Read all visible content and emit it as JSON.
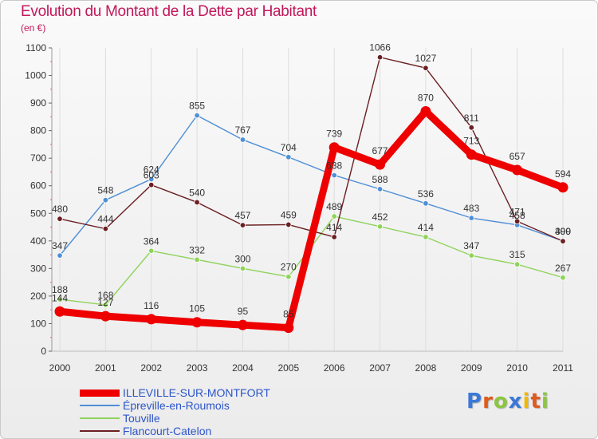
{
  "chart_data": {
    "type": "line",
    "title": "Evolution du Montant de la Dette par Habitant",
    "unit_label": "(en €)",
    "xlabel": "",
    "ylabel": "",
    "ylim": [
      0,
      1100
    ],
    "y_ticks": [
      0,
      100,
      200,
      300,
      400,
      500,
      600,
      700,
      800,
      900,
      1000,
      1100
    ],
    "categories": [
      "2000",
      "2001",
      "2002",
      "2003",
      "2004",
      "2005",
      "2006",
      "2007",
      "2008",
      "2009",
      "2010",
      "2011"
    ],
    "grid": "vertical",
    "legend_position": "bottom-left",
    "series": [
      {
        "name": "ILLEVILLE-SUR-MONTFORT",
        "color": "#ee0000",
        "values": [
          144,
          127,
          116,
          105,
          95,
          85,
          739,
          677,
          870,
          713,
          657,
          594
        ]
      },
      {
        "name": "Épreville-en-Roumois",
        "color": "#4f8fd6",
        "values": [
          347,
          548,
          624,
          855,
          767,
          704,
          638,
          588,
          536,
          483,
          458,
          400
        ]
      },
      {
        "name": "Touville",
        "color": "#90d35b",
        "values": [
          188,
          168,
          364,
          332,
          300,
          270,
          489,
          452,
          414,
          347,
          315,
          267
        ]
      },
      {
        "name": "Flancourt-Catelon",
        "color": "#6b1f22",
        "values": [
          480,
          444,
          603,
          540,
          457,
          459,
          414,
          1066,
          1027,
          811,
          471,
          399
        ]
      }
    ]
  },
  "brand": {
    "logo_text": "Proxiti",
    "letter_colors": [
      "#3a78d8",
      "#e05a1c",
      "#8cc63f",
      "#3a78d8",
      "#f2b705",
      "#e05a1c",
      "#8cc63f"
    ]
  }
}
